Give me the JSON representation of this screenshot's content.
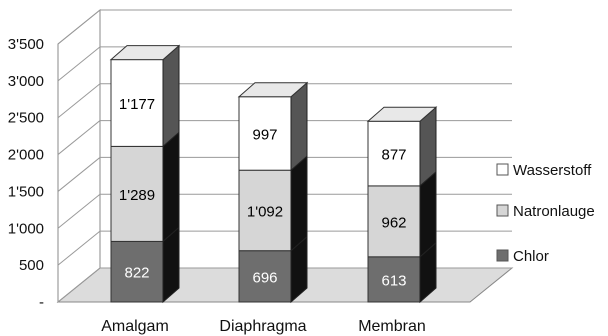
{
  "chart_data": {
    "type": "bar",
    "stacked": true,
    "three_d": true,
    "categories": [
      "Amalgam",
      "Diaphragma",
      "Membran"
    ],
    "series": [
      {
        "name": "Chlor",
        "values": [
          822,
          696,
          613
        ],
        "labels": [
          "822",
          "696",
          "613"
        ],
        "color": "#6e6e6e"
      },
      {
        "name": "Natronlauge",
        "values": [
          1289,
          1092,
          962
        ],
        "labels": [
          "1'289",
          "1'092",
          "962"
        ],
        "color": "#d6d6d6"
      },
      {
        "name": "Wasserstoff",
        "values": [
          1177,
          997,
          877
        ],
        "labels": [
          "1'177",
          "997",
          "877"
        ],
        "color": "#ffffff"
      }
    ],
    "y_ticks": [
      0,
      500,
      1000,
      1500,
      2000,
      2500,
      3000,
      3500
    ],
    "y_tick_labels": [
      "-",
      "500",
      "1'000",
      "1'500",
      "2'000",
      "2'500",
      "3'000",
      "3'500"
    ],
    "ylim": [
      0,
      3500
    ],
    "grid": true,
    "legend": {
      "position": "right",
      "order": [
        "Wasserstoff",
        "Natronlauge",
        "Chlor"
      ]
    },
    "title": "",
    "xlabel": "",
    "ylabel": ""
  }
}
